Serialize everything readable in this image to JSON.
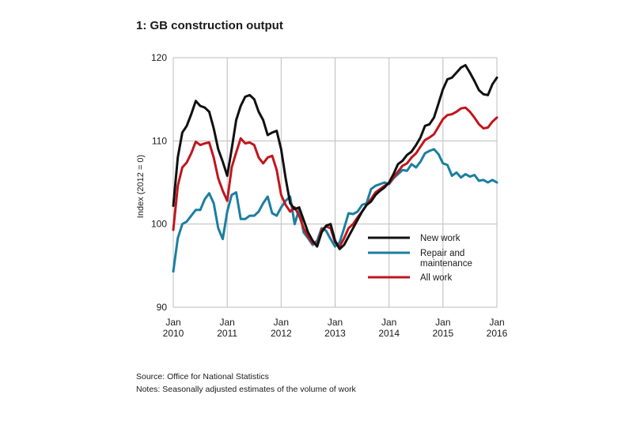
{
  "title": "1: GB construction output",
  "source_line": "Source: Office for National Statistics",
  "notes_line": "Notes: Seasonally adjusted estimates of the volume of work",
  "chart_data": {
    "type": "line",
    "title": "1: GB construction output",
    "ylabel": "Index (2012 = 0)",
    "xlabel": "",
    "xlim": [
      "2010-01",
      "2016-01"
    ],
    "ylim": [
      90,
      120
    ],
    "yticks": [
      90,
      100,
      110,
      120
    ],
    "xticks": [
      {
        "value": "2010-01",
        "line1": "Jan",
        "line2": "2010"
      },
      {
        "value": "2011-01",
        "line1": "Jan",
        "line2": "2011"
      },
      {
        "value": "2012-01",
        "line1": "Jan",
        "line2": "2012"
      },
      {
        "value": "2013-01",
        "line1": "Jan",
        "line2": "2013"
      },
      {
        "value": "2014-01",
        "line1": "Jan",
        "line2": "2014"
      },
      {
        "value": "2015-01",
        "line1": "Jan",
        "line2": "2015"
      },
      {
        "value": "2016-01",
        "line1": "Jan",
        "line2": "2016"
      }
    ],
    "grid": true,
    "legend": "center-right",
    "series": [
      {
        "name": "New work",
        "color": "#111111",
        "points": [
          [
            "2010-01",
            102.2
          ],
          [
            "2010-02",
            108.0
          ],
          [
            "2010-03",
            111.0
          ],
          [
            "2010-04",
            111.8
          ],
          [
            "2010-05",
            113.2
          ],
          [
            "2010-06",
            114.8
          ],
          [
            "2010-07",
            114.2
          ],
          [
            "2010-08",
            114.0
          ],
          [
            "2010-09",
            113.5
          ],
          [
            "2010-10",
            111.5
          ],
          [
            "2010-11",
            109.0
          ],
          [
            "2010-12",
            107.5
          ],
          [
            "2011-01",
            105.8
          ],
          [
            "2011-02",
            109.0
          ],
          [
            "2011-03",
            112.5
          ],
          [
            "2011-04",
            114.2
          ],
          [
            "2011-05",
            115.3
          ],
          [
            "2011-06",
            115.5
          ],
          [
            "2011-07",
            115.0
          ],
          [
            "2011-08",
            113.5
          ],
          [
            "2011-09",
            112.5
          ],
          [
            "2011-10",
            110.7
          ],
          [
            "2011-11",
            111.0
          ],
          [
            "2011-12",
            111.2
          ],
          [
            "2012-01",
            109.0
          ],
          [
            "2012-02",
            105.5
          ],
          [
            "2012-03",
            102.5
          ],
          [
            "2012-04",
            101.8
          ],
          [
            "2012-05",
            102.0
          ],
          [
            "2012-06",
            100.5
          ],
          [
            "2012-07",
            99.0
          ],
          [
            "2012-08",
            98.0
          ],
          [
            "2012-09",
            97.3
          ],
          [
            "2012-10",
            99.0
          ],
          [
            "2012-11",
            99.8
          ],
          [
            "2012-12",
            100.0
          ],
          [
            "2013-01",
            98.0
          ],
          [
            "2013-02",
            97.0
          ],
          [
            "2013-03",
            97.5
          ],
          [
            "2013-04",
            98.5
          ],
          [
            "2013-05",
            99.5
          ],
          [
            "2013-06",
            100.5
          ],
          [
            "2013-07",
            101.5
          ],
          [
            "2013-08",
            102.3
          ],
          [
            "2013-09",
            102.7
          ],
          [
            "2013-10",
            103.5
          ],
          [
            "2013-11",
            104.0
          ],
          [
            "2013-12",
            104.4
          ],
          [
            "2014-01",
            105.0
          ],
          [
            "2014-02",
            106.0
          ],
          [
            "2014-03",
            107.2
          ],
          [
            "2014-04",
            107.6
          ],
          [
            "2014-05",
            108.3
          ],
          [
            "2014-06",
            108.7
          ],
          [
            "2014-07",
            109.5
          ],
          [
            "2014-08",
            110.4
          ],
          [
            "2014-09",
            111.8
          ],
          [
            "2014-10",
            112.0
          ],
          [
            "2014-11",
            112.8
          ],
          [
            "2014-12",
            114.5
          ],
          [
            "2015-01",
            116.2
          ],
          [
            "2015-02",
            117.4
          ],
          [
            "2015-03",
            117.6
          ],
          [
            "2015-04",
            118.2
          ],
          [
            "2015-05",
            118.8
          ],
          [
            "2015-06",
            119.1
          ],
          [
            "2015-07",
            118.2
          ],
          [
            "2015-08",
            117.2
          ],
          [
            "2015-09",
            116.1
          ],
          [
            "2015-10",
            115.6
          ],
          [
            "2015-11",
            115.5
          ],
          [
            "2015-12",
            116.8
          ],
          [
            "2016-01",
            117.6
          ]
        ]
      },
      {
        "name": "Repair and maintenance",
        "color": "#1b7fa0",
        "points": [
          [
            "2010-01",
            94.3
          ],
          [
            "2010-02",
            98.3
          ],
          [
            "2010-03",
            100.0
          ],
          [
            "2010-04",
            100.3
          ],
          [
            "2010-05",
            101.0
          ],
          [
            "2010-06",
            101.7
          ],
          [
            "2010-07",
            101.7
          ],
          [
            "2010-08",
            103.0
          ],
          [
            "2010-09",
            103.7
          ],
          [
            "2010-10",
            102.5
          ],
          [
            "2010-11",
            99.5
          ],
          [
            "2010-12",
            98.2
          ],
          [
            "2011-01",
            101.5
          ],
          [
            "2011-02",
            103.5
          ],
          [
            "2011-03",
            103.8
          ],
          [
            "2011-04",
            100.6
          ],
          [
            "2011-05",
            100.6
          ],
          [
            "2011-06",
            101.0
          ],
          [
            "2011-07",
            101.0
          ],
          [
            "2011-08",
            101.5
          ],
          [
            "2011-09",
            102.5
          ],
          [
            "2011-10",
            103.3
          ],
          [
            "2011-11",
            101.3
          ],
          [
            "2011-12",
            101.0
          ],
          [
            "2012-01",
            102.0
          ],
          [
            "2012-02",
            102.8
          ],
          [
            "2012-03",
            103.3
          ],
          [
            "2012-04",
            100.0
          ],
          [
            "2012-05",
            101.8
          ],
          [
            "2012-06",
            99.0
          ],
          [
            "2012-07",
            98.3
          ],
          [
            "2012-08",
            97.5
          ],
          [
            "2012-09",
            98.0
          ],
          [
            "2012-10",
            99.5
          ],
          [
            "2012-11",
            99.2
          ],
          [
            "2012-12",
            98.2
          ],
          [
            "2013-01",
            97.3
          ],
          [
            "2013-02",
            97.8
          ],
          [
            "2013-03",
            99.5
          ],
          [
            "2013-04",
            101.3
          ],
          [
            "2013-05",
            101.2
          ],
          [
            "2013-06",
            101.5
          ],
          [
            "2013-07",
            102.3
          ],
          [
            "2013-08",
            102.5
          ],
          [
            "2013-09",
            104.2
          ],
          [
            "2013-10",
            104.6
          ],
          [
            "2013-11",
            104.8
          ],
          [
            "2013-12",
            105.0
          ],
          [
            "2014-01",
            104.8
          ],
          [
            "2014-02",
            105.5
          ],
          [
            "2014-03",
            106.0
          ],
          [
            "2014-04",
            106.5
          ],
          [
            "2014-05",
            106.4
          ],
          [
            "2014-06",
            107.2
          ],
          [
            "2014-07",
            106.8
          ],
          [
            "2014-08",
            107.5
          ],
          [
            "2014-09",
            108.5
          ],
          [
            "2014-10",
            108.8
          ],
          [
            "2014-11",
            109.0
          ],
          [
            "2014-12",
            108.4
          ],
          [
            "2015-01",
            107.3
          ],
          [
            "2015-02",
            107.1
          ],
          [
            "2015-03",
            105.8
          ],
          [
            "2015-04",
            106.2
          ],
          [
            "2015-05",
            105.6
          ],
          [
            "2015-06",
            106.0
          ],
          [
            "2015-07",
            105.7
          ],
          [
            "2015-08",
            105.9
          ],
          [
            "2015-09",
            105.2
          ],
          [
            "2015-10",
            105.3
          ],
          [
            "2015-11",
            105.0
          ],
          [
            "2015-12",
            105.3
          ],
          [
            "2016-01",
            105.0
          ]
        ]
      },
      {
        "name": "All work",
        "color": "#c0161c",
        "points": [
          [
            "2010-01",
            99.3
          ],
          [
            "2010-02",
            104.6
          ],
          [
            "2010-03",
            106.8
          ],
          [
            "2010-04",
            107.4
          ],
          [
            "2010-05",
            108.5
          ],
          [
            "2010-06",
            109.9
          ],
          [
            "2010-07",
            109.5
          ],
          [
            "2010-08",
            109.7
          ],
          [
            "2010-09",
            109.8
          ],
          [
            "2010-10",
            108.0
          ],
          [
            "2010-11",
            105.5
          ],
          [
            "2010-12",
            104.0
          ],
          [
            "2011-01",
            102.8
          ],
          [
            "2011-02",
            106.8
          ],
          [
            "2011-03",
            108.6
          ],
          [
            "2011-04",
            110.3
          ],
          [
            "2011-05",
            109.7
          ],
          [
            "2011-06",
            109.8
          ],
          [
            "2011-07",
            109.5
          ],
          [
            "2011-08",
            108.0
          ],
          [
            "2011-09",
            107.3
          ],
          [
            "2011-10",
            108.0
          ],
          [
            "2011-11",
            108.2
          ],
          [
            "2011-12",
            106.5
          ],
          [
            "2012-01",
            103.5
          ],
          [
            "2012-02",
            102.3
          ],
          [
            "2012-03",
            101.5
          ],
          [
            "2012-04",
            102.0
          ],
          [
            "2012-05",
            101.0
          ],
          [
            "2012-06",
            99.5
          ],
          [
            "2012-07",
            98.5
          ],
          [
            "2012-08",
            97.7
          ],
          [
            "2012-09",
            97.5
          ],
          [
            "2012-10",
            99.3
          ],
          [
            "2012-11",
            99.7
          ],
          [
            "2012-12",
            99.5
          ],
          [
            "2013-01",
            97.8
          ],
          [
            "2013-02",
            97.3
          ],
          [
            "2013-03",
            98.3
          ],
          [
            "2013-04",
            99.5
          ],
          [
            "2013-05",
            100.0
          ],
          [
            "2013-06",
            100.8
          ],
          [
            "2013-07",
            101.5
          ],
          [
            "2013-08",
            102.3
          ],
          [
            "2013-09",
            103.0
          ],
          [
            "2013-10",
            103.8
          ],
          [
            "2013-11",
            104.2
          ],
          [
            "2013-12",
            104.6
          ],
          [
            "2014-01",
            104.9
          ],
          [
            "2014-02",
            105.6
          ],
          [
            "2014-03",
            106.3
          ],
          [
            "2014-04",
            107.0
          ],
          [
            "2014-05",
            107.3
          ],
          [
            "2014-06",
            108.0
          ],
          [
            "2014-07",
            108.5
          ],
          [
            "2014-08",
            109.3
          ],
          [
            "2014-09",
            110.1
          ],
          [
            "2014-10",
            110.4
          ],
          [
            "2014-11",
            110.8
          ],
          [
            "2014-12",
            111.7
          ],
          [
            "2015-01",
            112.6
          ],
          [
            "2015-02",
            113.1
          ],
          [
            "2015-03",
            113.2
          ],
          [
            "2015-04",
            113.5
          ],
          [
            "2015-05",
            113.9
          ],
          [
            "2015-06",
            114.0
          ],
          [
            "2015-07",
            113.5
          ],
          [
            "2015-08",
            112.8
          ],
          [
            "2015-09",
            112.0
          ],
          [
            "2015-10",
            111.5
          ],
          [
            "2015-11",
            111.6
          ],
          [
            "2015-12",
            112.3
          ],
          [
            "2016-01",
            112.8
          ]
        ]
      }
    ]
  }
}
